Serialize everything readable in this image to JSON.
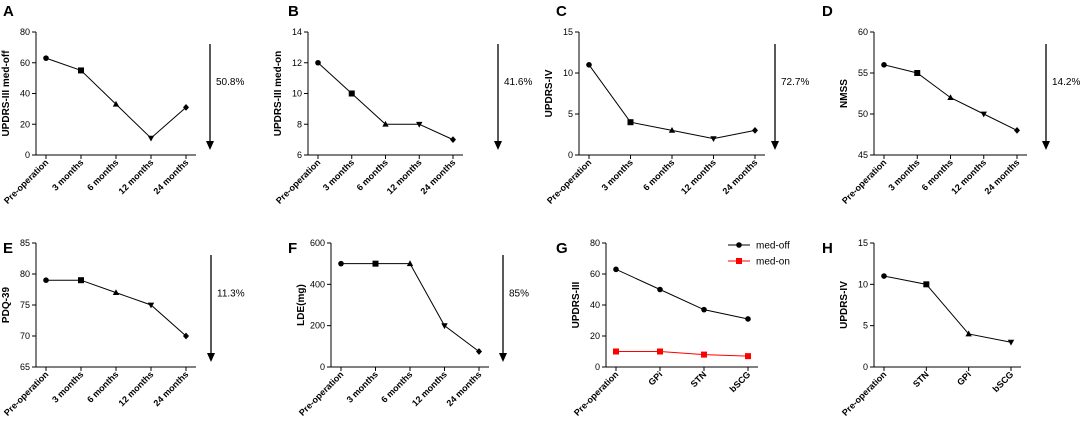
{
  "chart_data": [
    {
      "panel": "A",
      "type": "line",
      "categories": [
        "Pre-operation",
        "3 months",
        "6 months",
        "12 months",
        "24 months"
      ],
      "series": [
        {
          "name": "UPDRS-III med-off",
          "values": [
            63,
            55,
            33,
            11,
            31
          ],
          "color": "#000000",
          "marker": "mixed"
        }
      ],
      "ylabel": "UPDRS-III med-off",
      "ylim": [
        0,
        80
      ],
      "yticks": [
        0,
        20,
        40,
        60,
        80
      ],
      "arrow_label": "50.8%"
    },
    {
      "panel": "B",
      "type": "line",
      "categories": [
        "Pre-operation",
        "3 months",
        "6 months",
        "12 months",
        "24 months"
      ],
      "series": [
        {
          "name": "UPDRS-III med-on",
          "values": [
            12,
            10,
            8,
            8,
            7
          ],
          "color": "#000000",
          "marker": "mixed"
        }
      ],
      "ylabel": "UPDRS-III med-on",
      "ylim": [
        6,
        14
      ],
      "yticks": [
        6,
        8,
        10,
        12,
        14
      ],
      "arrow_label": "41.6%"
    },
    {
      "panel": "C",
      "type": "line",
      "categories": [
        "Pre-operation",
        "3 months",
        "6 months",
        "12 months",
        "24 months"
      ],
      "series": [
        {
          "name": "UPDRS-IV",
          "values": [
            11,
            4,
            3,
            2,
            3
          ],
          "color": "#000000",
          "marker": "mixed"
        }
      ],
      "ylabel": "UPDRS-IV",
      "ylim": [
        0,
        15
      ],
      "yticks": [
        0,
        5,
        10,
        15
      ],
      "arrow_label": "72.7%"
    },
    {
      "panel": "D",
      "type": "line",
      "categories": [
        "Pre-operation",
        "3 months",
        "6 months",
        "12 months",
        "24 months"
      ],
      "series": [
        {
          "name": "NMSS",
          "values": [
            56,
            55,
            52,
            50,
            48
          ],
          "color": "#000000",
          "marker": "mixed"
        }
      ],
      "ylabel": "NMSS",
      "ylim": [
        45,
        60
      ],
      "yticks": [
        45,
        50,
        55,
        60
      ],
      "arrow_label": "14.2%"
    },
    {
      "panel": "E",
      "type": "line",
      "categories": [
        "Pre-operation",
        "3 months",
        "6 months",
        "12 months",
        "24 months"
      ],
      "series": [
        {
          "name": "PDQ-39",
          "values": [
            79,
            79,
            77,
            75,
            70
          ],
          "color": "#000000",
          "marker": "mixed"
        }
      ],
      "ylabel": "PDQ-39",
      "ylim": [
        65,
        85
      ],
      "yticks": [
        65,
        70,
        75,
        80,
        85
      ],
      "arrow_label": "11.3%"
    },
    {
      "panel": "F",
      "type": "line",
      "categories": [
        "Pre-operation",
        "3 months",
        "6 months",
        "12 months",
        "24 months"
      ],
      "series": [
        {
          "name": "LDE(mg)",
          "values": [
            500,
            500,
            500,
            200,
            75
          ],
          "color": "#000000",
          "marker": "mixed"
        }
      ],
      "ylabel": "LDE(mg)",
      "ylim": [
        0,
        600
      ],
      "yticks": [
        0,
        200,
        400,
        600
      ],
      "arrow_label": "85%"
    },
    {
      "panel": "G",
      "type": "line",
      "categories": [
        "Pre-operation",
        "GPi",
        "STN",
        "bSCG"
      ],
      "series": [
        {
          "name": "med-off",
          "values": [
            63,
            50,
            37,
            31
          ],
          "color": "#000000",
          "marker": "circle"
        },
        {
          "name": "med-on",
          "values": [
            10,
            10,
            8,
            7
          ],
          "color": "#ff0000",
          "marker": "square"
        }
      ],
      "ylabel": "UPDRS-III",
      "ylim": [
        0,
        80
      ],
      "yticks": [
        0,
        20,
        40,
        60,
        80
      ],
      "legend": "top-right"
    },
    {
      "panel": "H",
      "type": "line",
      "categories": [
        "Pre-operation",
        "STN",
        "GPi",
        "bSCG"
      ],
      "series": [
        {
          "name": "UPDRS-IV",
          "values": [
            11,
            10,
            4,
            3
          ],
          "color": "#000000",
          "marker": "mixed"
        }
      ],
      "ylabel": "UPDRS-IV",
      "ylim": [
        0,
        15
      ],
      "yticks": [
        0,
        5,
        10,
        15
      ]
    }
  ]
}
